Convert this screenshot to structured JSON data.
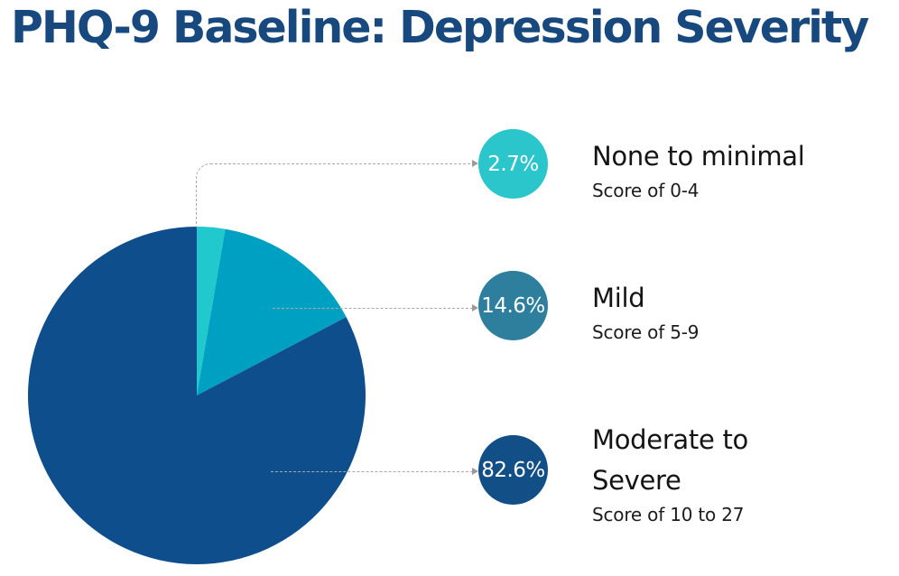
{
  "title": "PHQ-9 Baseline: Depression Severity",
  "colors": {
    "title": "#17497f",
    "background": "#ffffff",
    "connector": "#a9a9a9"
  },
  "chart_data": {
    "type": "pie",
    "title": "PHQ-9 Baseline: Depression Severity",
    "start_angle_deg_from_top": 0,
    "direction": "clockwise",
    "legend_position": "right",
    "slices": [
      {
        "label": "None to minimal",
        "sublabel": "Score of 0-4",
        "value_pct": 2.7,
        "pct_label": "2.7%",
        "slice_color": "#21c8cd",
        "badge_color": "#2bc5cc"
      },
      {
        "label": "Mild",
        "sublabel": "Score of 5-9",
        "value_pct": 14.6,
        "pct_label": "14.6%",
        "slice_color": "#00a0c2",
        "badge_color": "#2e7f9e"
      },
      {
        "label": "Moderate to Severe",
        "sublabel": "Score of 10 to 27",
        "value_pct": 82.6,
        "pct_label": "82.6%",
        "slice_color": "#0f4e8c",
        "badge_color": "#134f87"
      }
    ]
  }
}
